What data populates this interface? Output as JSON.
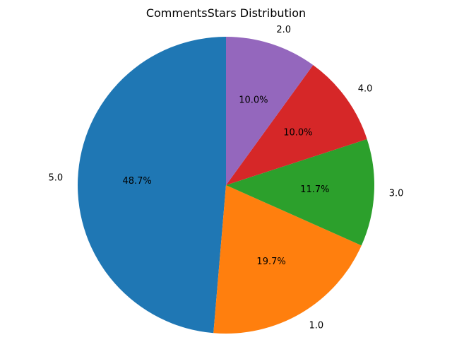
{
  "chart_data": {
    "type": "pie",
    "title": "CommentsStars Distribution",
    "start_angle": 90,
    "direction": "counterclockwise",
    "slices": [
      {
        "label": "5.0",
        "value": 48.7,
        "pct_label": "48.7%",
        "color": "#1f77b4"
      },
      {
        "label": "1.0",
        "value": 19.7,
        "pct_label": "19.7%",
        "color": "#ff7f0e"
      },
      {
        "label": "3.0",
        "value": 11.7,
        "pct_label": "11.7%",
        "color": "#2ca02c"
      },
      {
        "label": "4.0",
        "value": 10.0,
        "pct_label": "10.0%",
        "color": "#d62728"
      },
      {
        "label": "2.0",
        "value": 10.0,
        "pct_label": "10.0%",
        "color": "#9467bd"
      }
    ]
  }
}
